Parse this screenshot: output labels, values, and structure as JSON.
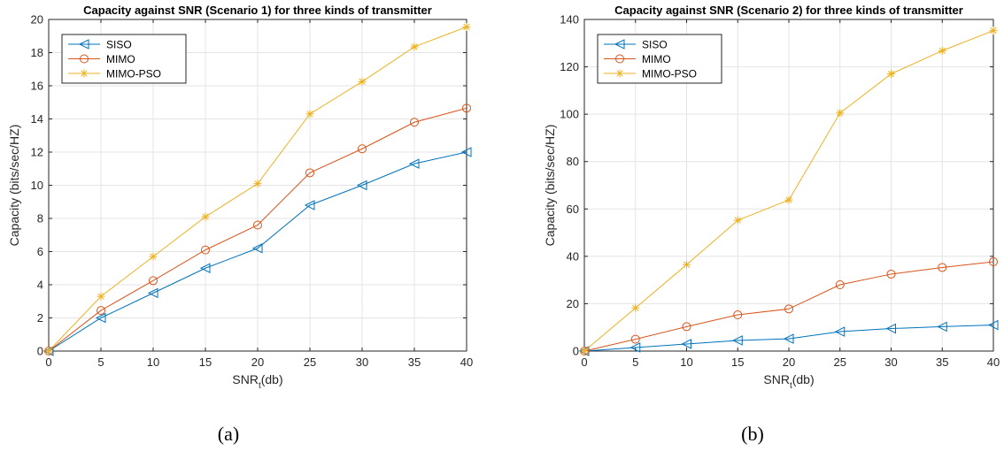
{
  "colors": {
    "siso": "#0072BD",
    "mimo": "#D95319",
    "mimo_pso": "#EDB120"
  },
  "chart_data": [
    {
      "type": "line",
      "title": "Capacity against SNR (Scenario 1) for three kinds of transmitter",
      "xlabel_main": "SNR",
      "xlabel_sub": "t",
      "xlabel_unit": "(db)",
      "ylabel": "Capacity (bits/sec/HZ)",
      "xlim": [
        0,
        40
      ],
      "ylim": [
        0,
        20
      ],
      "xticks": [
        0,
        5,
        10,
        15,
        20,
        25,
        30,
        35,
        40
      ],
      "yticks": [
        0,
        2,
        4,
        6,
        8,
        10,
        12,
        14,
        16,
        18,
        20
      ],
      "grid": true,
      "legend_position": "top-left",
      "x": [
        0,
        5,
        10,
        15,
        20,
        25,
        30,
        35,
        40
      ],
      "series": [
        {
          "name": "SISO",
          "marker": "triangle-left",
          "color": "#0072BD",
          "values": [
            0,
            2.0,
            3.5,
            5.0,
            6.2,
            8.8,
            10.0,
            11.3,
            12.0
          ]
        },
        {
          "name": "MIMO",
          "marker": "circle",
          "color": "#D95319",
          "values": [
            0,
            2.45,
            4.25,
            6.1,
            7.6,
            10.75,
            12.2,
            13.8,
            14.65
          ]
        },
        {
          "name": "MIMO-PSO",
          "marker": "asterisk",
          "color": "#EDB120",
          "values": [
            0,
            3.3,
            5.7,
            8.1,
            10.1,
            14.3,
            16.25,
            18.35,
            19.55
          ]
        }
      ],
      "caption": "(a)"
    },
    {
      "type": "line",
      "title": "Capacity against SNR (Scenario 2) for three kinds of transmitter",
      "xlabel_main": "SNR",
      "xlabel_sub": "t",
      "xlabel_unit": "(db)",
      "ylabel": "Capacity (bits/sec/HZ)",
      "xlim": [
        0,
        40
      ],
      "ylim": [
        0,
        140
      ],
      "xticks": [
        0,
        5,
        10,
        15,
        20,
        25,
        30,
        35,
        40
      ],
      "yticks": [
        0,
        20,
        40,
        60,
        80,
        100,
        120,
        140
      ],
      "grid": true,
      "legend_position": "top-left",
      "x": [
        0,
        5,
        10,
        15,
        20,
        25,
        30,
        35,
        40
      ],
      "series": [
        {
          "name": "SISO",
          "marker": "triangle-left",
          "color": "#0072BD",
          "values": [
            0,
            1.5,
            3.0,
            4.5,
            5.2,
            8.2,
            9.5,
            10.3,
            11.0
          ]
        },
        {
          "name": "MIMO",
          "marker": "circle",
          "color": "#D95319",
          "values": [
            0,
            5.0,
            10.3,
            15.3,
            17.8,
            28.0,
            32.5,
            35.3,
            37.7
          ]
        },
        {
          "name": "MIMO-PSO",
          "marker": "asterisk",
          "color": "#EDB120",
          "values": [
            0,
            18.2,
            36.5,
            55.2,
            63.8,
            100.5,
            117.0,
            126.8,
            135.3
          ]
        }
      ],
      "caption": "(b)"
    }
  ]
}
